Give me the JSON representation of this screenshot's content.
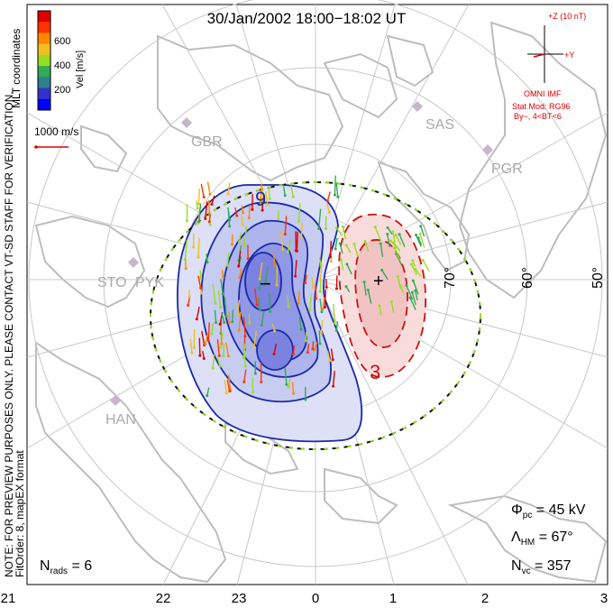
{
  "title": "30/Jan/2002 18:00−18:02 UT",
  "colorbar": {
    "unit_label": "Vel [m/s]",
    "ticks": [
      "600",
      "400",
      "200"
    ],
    "colors": [
      "#0000ff",
      "#3333cc",
      "#2f7f8f",
      "#33aa55",
      "#99dd22",
      "#f0c020",
      "#ff8800",
      "#ff3300",
      "#dd0000"
    ]
  },
  "coord_label": "MLT coordinates",
  "scale_vector_label": "1000 m/s",
  "side_note_1": "NOTE: FOR PREVIEW PURPOSES ONLY. PLEASE CONTACT VT-SD STAFF FOR VERIFICATION.",
  "side_note_2": "FitOrder: 8, mapEX format",
  "stations": [
    "GBR",
    "SAS",
    "PGR",
    "STO",
    "PYK",
    "HAN"
  ],
  "lat_labels": [
    "70°",
    "60°",
    "50°"
  ],
  "mlt_labels": [
    "21",
    "22",
    "23",
    "0",
    "1",
    "2",
    "3"
  ],
  "imf": {
    "z_label": "+Z (10 nT)",
    "y_label": "+Y",
    "source": "OMNI IMF",
    "stat_mod": "Stat Mod: RG96",
    "condition": "By−, 4<BT<6",
    "color": "#dd0000"
  },
  "potential_labels": {
    "negative": "9",
    "positive": "3",
    "min_marker": "−",
    "max_marker": "+"
  },
  "stats": {
    "phi_symbol": "Φ",
    "phi_sub": "pc",
    "phi_value": " = 45 kV",
    "lambda_symbol": "Λ",
    "lambda_sub": "HM",
    "lambda_value": " = 67°",
    "nvc_symbol": "N",
    "nvc_sub": "vc",
    "nvc_value": " = 357",
    "nrads_symbol": "N",
    "nrads_sub": "rads",
    "nrads_value": " = 6"
  },
  "accent_colors": {
    "negative_cell": "#1a2aa8",
    "positive_cell": "#cc1111",
    "grid": "#c8c8c8",
    "coast": "#bdbdbd"
  }
}
